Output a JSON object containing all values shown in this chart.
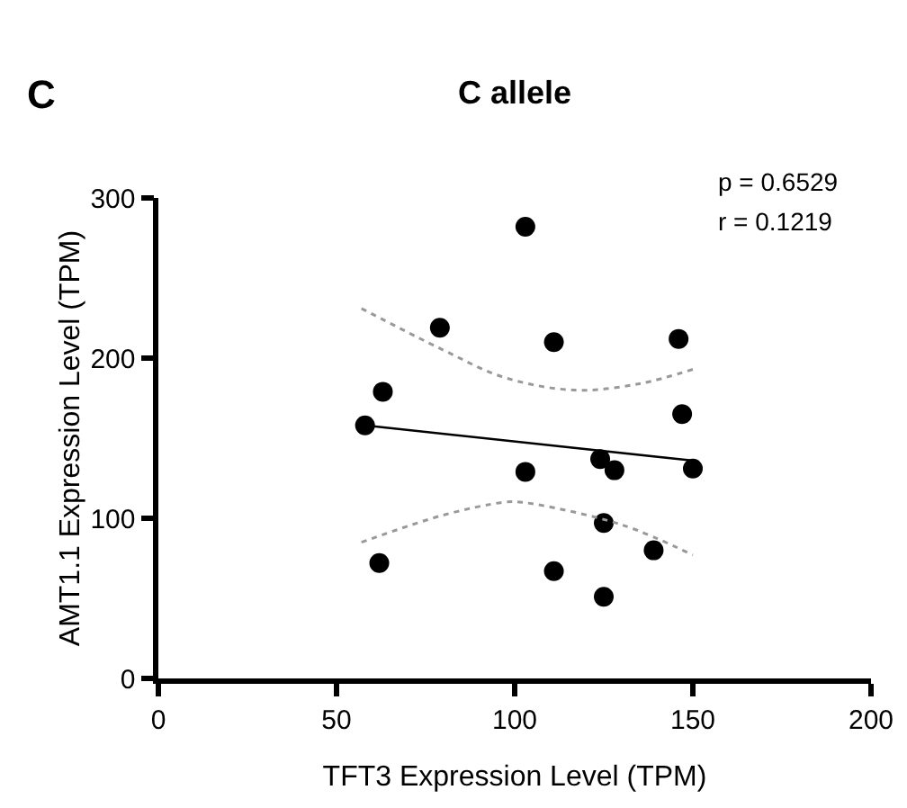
{
  "chart_data": {
    "type": "scatter",
    "title": "C allele",
    "xlabel": "TFT3 Expression Level (TPM)",
    "ylabel": "AMT1.1 Expression Level (TPM)",
    "annotations": [
      "C",
      "p = 0.6529",
      "r = 0.1219"
    ],
    "xlim": [
      0,
      200
    ],
    "xticks": [
      0,
      50,
      100,
      150,
      200
    ],
    "ylim": [
      0,
      300
    ],
    "yticks": [
      0,
      100,
      200,
      300
    ],
    "grid": false,
    "series": [
      {
        "marker": "circle",
        "color": "#000000",
        "x": [
          79,
          63,
          58,
          62,
          103,
          111,
          146,
          147,
          103,
          124,
          128,
          150,
          125,
          139,
          111,
          125
        ],
        "values": [
          219,
          179,
          158,
          72,
          282,
          210,
          212,
          165,
          129,
          137,
          130,
          131,
          97,
          80,
          67,
          51
        ]
      },
      {
        "type": "line",
        "marker": "none",
        "color": "#000000",
        "line_style": "solid",
        "x": [
          58,
          150
        ],
        "values": [
          158,
          136
        ]
      },
      {
        "type": "line",
        "color": "#999999",
        "line_style": "dotted",
        "marker": "none",
        "x": [
          57,
          80,
          97,
          117,
          135,
          150
        ],
        "values": [
          231,
          205,
          188,
          180,
          184,
          193
        ]
      },
      {
        "type": "line",
        "color": "#999999",
        "line_style": "dotted",
        "marker": "none",
        "x": [
          57,
          80,
          97,
          102,
          130,
          150
        ],
        "values": [
          85,
          102,
          110,
          110,
          96,
          77
        ]
      }
    ]
  }
}
